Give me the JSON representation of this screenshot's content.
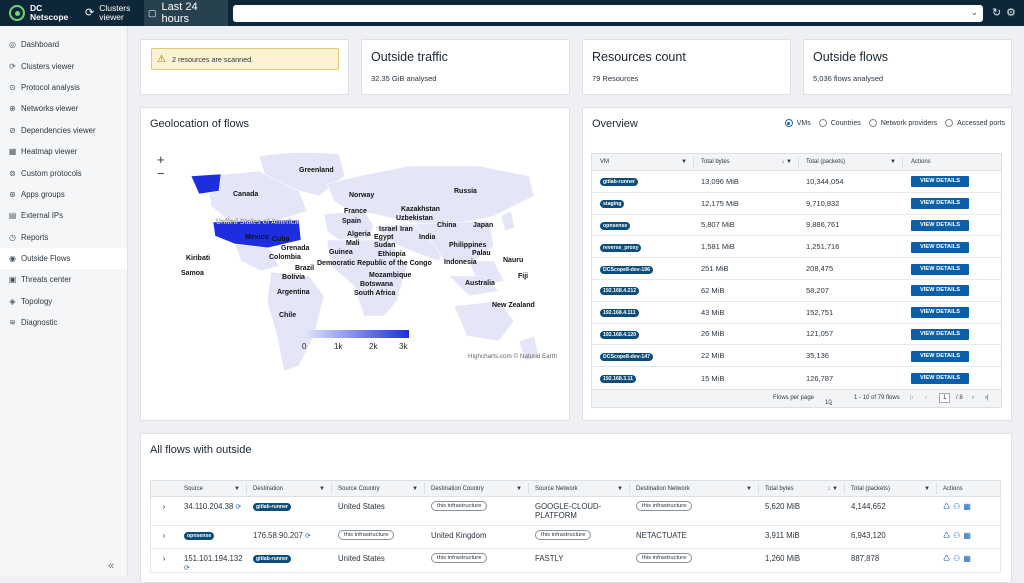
{
  "topbar": {
    "brand_line1": "DC",
    "brand_line2": "Netscope",
    "clusters_line1": "Clusters",
    "clusters_line2": "viewer",
    "time_range": "Last 24 hours",
    "search_value": ""
  },
  "sidebar": {
    "items": [
      {
        "label": "Dashboard",
        "icon": "dashboard-icon"
      },
      {
        "label": "Clusters viewer",
        "icon": "clusters-icon"
      },
      {
        "label": "Protocol analysis",
        "icon": "protocol-icon"
      },
      {
        "label": "Networks viewer",
        "icon": "network-icon"
      },
      {
        "label": "Dependencies viewer",
        "icon": "dependencies-icon"
      },
      {
        "label": "Heatmap viewer",
        "icon": "heatmap-icon"
      },
      {
        "label": "Custom protocols",
        "icon": "custom-protocols-icon"
      },
      {
        "label": "Apps groups",
        "icon": "apps-groups-icon"
      },
      {
        "label": "External IPs",
        "icon": "external-ips-icon"
      },
      {
        "label": "Reports",
        "icon": "reports-icon"
      },
      {
        "label": "Outside Flows",
        "icon": "outside-flows-icon",
        "active": true
      },
      {
        "label": "Threats center",
        "icon": "threats-icon"
      },
      {
        "label": "Topology",
        "icon": "topology-icon"
      },
      {
        "label": "Diagnostic",
        "icon": "diagnostic-icon"
      }
    ]
  },
  "alert": {
    "text": "2 resources are scanned."
  },
  "kpis": {
    "traffic_title": "Outside traffic",
    "traffic_sub": "32.35 GiB analysed",
    "resources_title": "Resources count",
    "resources_sub": "79 Resources",
    "flows_title": "Outside flows",
    "flows_sub": "5,036 flows analysed"
  },
  "geo": {
    "title": "Geolocation of flows",
    "legend_ticks": [
      "0",
      "1k",
      "2k",
      "3k"
    ],
    "credit": "Highcharts.com © Natural Earth",
    "countries": [
      "Greenland",
      "Canada",
      "Russia",
      "Norway",
      "France",
      "Spain",
      "Kazakhstan",
      "Uzbekistan",
      "Algeria",
      "Israel",
      "Iran",
      "Egypt",
      "China",
      "Japan",
      "Mali",
      "Sudan",
      "India",
      "United States of America",
      "Mexico",
      "Cuba",
      "Guinea",
      "Ethiopia",
      "Philippines",
      "Palau",
      "Grenada",
      "Colombia",
      "Democratic Republic of the Congo",
      "Indonesia",
      "Nauru",
      "Kiribati",
      "Brazil",
      "Samoa",
      "Bolivia",
      "Mozambique",
      "Fiji",
      "Botswana",
      "Australia",
      "South Africa",
      "Argentina",
      "New Zealand",
      "Chile"
    ]
  },
  "overview": {
    "title": "Overview",
    "radios": [
      "VMs",
      "Countries",
      "Network providers",
      "Accessed ports"
    ],
    "selected": "VMs",
    "columns": [
      "VM",
      "Total bytes",
      "Total (packets)",
      "Actions"
    ],
    "button_label": "VIEW DETAILS",
    "rows": [
      {
        "vm": "gitlab-runner",
        "bytes": "13,096 MiB",
        "packets": "10,344,054"
      },
      {
        "vm": "staging",
        "bytes": "12,175 MiB",
        "packets": "9,710,832"
      },
      {
        "vm": "opnsense",
        "bytes": "5,807 MiB",
        "packets": "9,886,761"
      },
      {
        "vm": "reverse_proxy",
        "bytes": "1,581 MiB",
        "packets": "1,251,716"
      },
      {
        "vm": "DCScope8-dev-196",
        "bytes": "251 MiB",
        "packets": "208,475"
      },
      {
        "vm": "192.168.4.212",
        "bytes": "62 MiB",
        "packets": "58,207"
      },
      {
        "vm": "192.168.4.111",
        "bytes": "43 MiB",
        "packets": "152,751"
      },
      {
        "vm": "192.168.4.120",
        "bytes": "26 MiB",
        "packets": "121,057"
      },
      {
        "vm": "DCScope8-dev-147",
        "bytes": "22 MiB",
        "packets": "35,136"
      },
      {
        "vm": "192.168.3.11",
        "bytes": "15 MiB",
        "packets": "126,787"
      }
    ],
    "pager": {
      "rows_label": "Flows per page",
      "per_page": "10",
      "range": "1 - 10 of 79 flows",
      "page": "1",
      "of": "/ 8"
    }
  },
  "flows": {
    "title": "All flows with outside",
    "columns": [
      "Source",
      "Destination",
      "Source Country",
      "Destination Country",
      "Source Network",
      "Destination Network",
      "Total bytes",
      "Total (packets)",
      "Actions"
    ],
    "rows": [
      {
        "source": "34.110.204.38",
        "destination": "gitlab-runner",
        "src_country": "United States",
        "dst_country": "this infrastructure",
        "src_network": "GOOGLE-CLOUD-PLATFORM",
        "dst_network": "this infrastructure",
        "bytes": "5,620 MiB",
        "packets": "4,144,652"
      },
      {
        "source": "opnsense",
        "destination": "176.58.90.207",
        "src_country": "this infrastructure",
        "dst_country": "United Kingdom",
        "src_network": "this infrastructure",
        "dst_network": "NETACTUATE",
        "bytes": "3,911 MiB",
        "packets": "6,943,120"
      },
      {
        "source": "151.101.194.132",
        "destination": "gitlab-runner",
        "src_country": "United States",
        "dst_country": "this infrastructure",
        "src_network": "FASTLY",
        "dst_network": "this infrastructure",
        "bytes": "1,260 MiB",
        "packets": "887,878"
      }
    ]
  }
}
